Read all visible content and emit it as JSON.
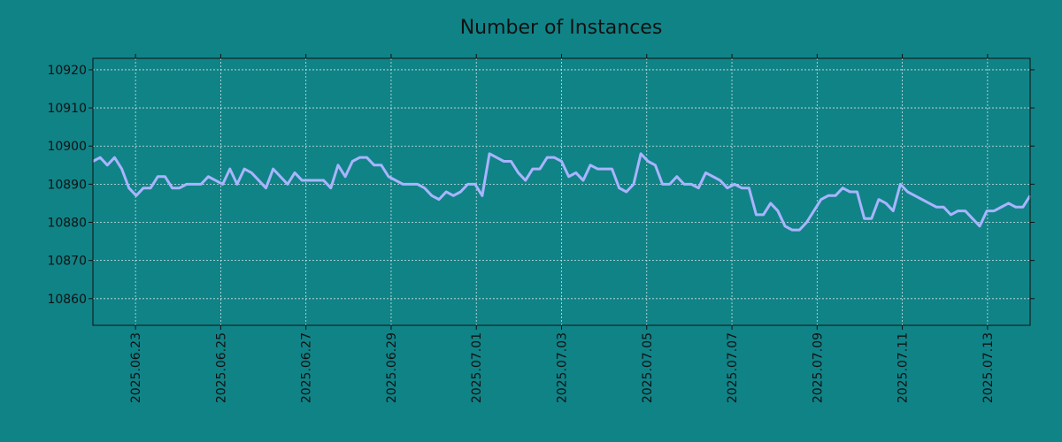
{
  "chart_data": {
    "type": "line",
    "title": "Number of Instances",
    "xlabel": "",
    "ylabel": "",
    "grid": true,
    "legend": "none",
    "colors": {
      "background": "#108387",
      "line": "#a9b4ff",
      "grid": "#cfe3e3",
      "axis": "#111111"
    },
    "x_start": "2025.06.22",
    "x_end": "2025.07.14",
    "xlim": [
      "2025.06.22",
      "2025.07.14"
    ],
    "ylim": [
      10853,
      10923
    ],
    "x_ticks": [
      "2025.06.23",
      "2025.06.25",
      "2025.06.27",
      "2025.06.29",
      "2025.07.01",
      "2025.07.03",
      "2025.07.05",
      "2025.07.07",
      "2025.07.09",
      "2025.07.11",
      "2025.07.13"
    ],
    "y_ticks": [
      10860,
      10870,
      10880,
      10890,
      10900,
      10910,
      10920
    ],
    "series": [
      {
        "values": [
          10896,
          10897,
          10895,
          10897,
          10894,
          10889,
          10887,
          10889,
          10889,
          10892,
          10892,
          10889,
          10889,
          10890,
          10890,
          10890,
          10892,
          10891,
          10890,
          10894,
          10890,
          10894,
          10893,
          10891,
          10889,
          10894,
          10892,
          10890,
          10893,
          10891,
          10891,
          10891,
          10891,
          10889,
          10895,
          10892,
          10896,
          10897,
          10897,
          10895,
          10895,
          10892,
          10891,
          10890,
          10890,
          10890,
          10889,
          10887,
          10886,
          10888,
          10887,
          10888,
          10890,
          10890,
          10887,
          10898,
          10897,
          10896,
          10896,
          10893,
          10891,
          10894,
          10894,
          10897,
          10897,
          10896,
          10892,
          10893,
          10891,
          10895,
          10894,
          10894,
          10894,
          10889,
          10888,
          10890,
          10898,
          10896,
          10895,
          10890,
          10890,
          10892,
          10890,
          10890,
          10889,
          10893,
          10892,
          10891,
          10889,
          10890,
          10889,
          10889,
          10882,
          10882,
          10885,
          10883,
          10879,
          10878,
          10878,
          10880,
          10883,
          10886,
          10887,
          10887,
          10889,
          10888,
          10888,
          10881,
          10881,
          10886,
          10885,
          10883,
          10890,
          10888,
          10887,
          10886,
          10885,
          10884,
          10884,
          10882,
          10883,
          10883,
          10881,
          10879,
          10883,
          10883,
          10884,
          10885,
          10884,
          10884,
          10887
        ]
      }
    ]
  }
}
